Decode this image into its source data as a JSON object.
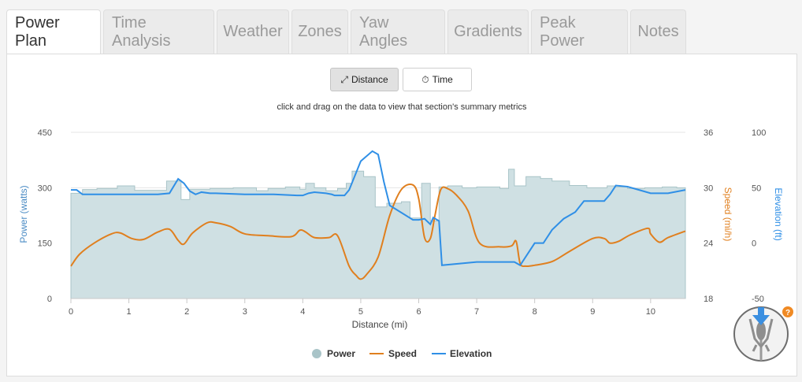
{
  "tabs": [
    {
      "label": "Power Plan",
      "active": true
    },
    {
      "label": "Time Analysis",
      "active": false
    },
    {
      "label": "Weather",
      "active": false
    },
    {
      "label": "Zones",
      "active": false
    },
    {
      "label": "Yaw Angles",
      "active": false
    },
    {
      "label": "Gradients",
      "active": false
    },
    {
      "label": "Peak Power",
      "active": false
    },
    {
      "label": "Notes",
      "active": false
    }
  ],
  "toggle": {
    "distance_label": "Distance",
    "time_label": "Time",
    "selected": "distance"
  },
  "hint": "click and drag on the data to view that section's summary metrics",
  "help_badge": "?",
  "icons": {
    "distance": "expand-arrows-icon",
    "time": "stopwatch-icon",
    "rider": "rider-yaw-icon",
    "help": "question-icon"
  },
  "colors": {
    "power_fill": "#cfe0e3",
    "power_stroke": "#a9c4c8",
    "speed": "#e07f1e",
    "elevation": "#2f8fe6",
    "power_axis": "#4a8bc4",
    "help_badge": "#f08a24"
  },
  "chart_data": {
    "type": "line",
    "xlabel": "Distance (mi)",
    "x_ticks": [
      0,
      1,
      2,
      3,
      4,
      5,
      6,
      7,
      8,
      9,
      10
    ],
    "xlim": [
      0,
      10.6
    ],
    "grid": true,
    "legend_position": "bottom-center",
    "axes": {
      "power": {
        "label": "Power (watts)",
        "position": "left",
        "range": [
          0,
          450
        ],
        "ticks": [
          0,
          150,
          300,
          450
        ]
      },
      "speed": {
        "label": "Speed (mi/h)",
        "position": "right",
        "range": [
          18,
          36
        ],
        "ticks": [
          18,
          24,
          30,
          36
        ]
      },
      "elevation": {
        "label": "Elevation (ft)",
        "position": "right",
        "range": [
          -50,
          100
        ],
        "ticks": [
          -50,
          0,
          50,
          100
        ]
      }
    },
    "series": [
      {
        "name": "Power",
        "type": "area-step",
        "axis": "power",
        "x": [
          0,
          0.2,
          0.45,
          0.8,
          1.1,
          1.65,
          1.9,
          2.05,
          2.4,
          2.8,
          3.2,
          3.4,
          3.7,
          3.95,
          4.05,
          4.2,
          4.4,
          4.6,
          4.75,
          4.85,
          5.05,
          5.25,
          5.45,
          5.7,
          5.85,
          6.05,
          6.2,
          6.35,
          6.5,
          6.75,
          7.0,
          7.4,
          7.55,
          7.65,
          7.85,
          8.1,
          8.3,
          8.6,
          8.9,
          9.25,
          9.4,
          9.6,
          9.9,
          10.2,
          10.45,
          10.6
        ],
        "values": [
          285,
          295,
          298,
          305,
          293,
          318,
          268,
          296,
          298,
          300,
          292,
          298,
          302,
          296,
          312,
          300,
          292,
          298,
          312,
          345,
          330,
          248,
          258,
          262,
          218,
          312,
          210,
          302,
          305,
          300,
          302,
          298,
          350,
          305,
          330,
          325,
          318,
          306,
          300,
          305,
          302,
          298,
          300,
          302,
          300,
          300
        ]
      },
      {
        "name": "Speed",
        "type": "line",
        "axis": "speed",
        "x": [
          0,
          0.15,
          0.4,
          0.7,
          0.85,
          1.05,
          1.25,
          1.5,
          1.7,
          1.85,
          1.95,
          2.1,
          2.35,
          2.5,
          2.75,
          3.0,
          3.4,
          3.8,
          3.95,
          4.05,
          4.2,
          4.45,
          4.6,
          4.8,
          4.92,
          5.0,
          5.1,
          5.3,
          5.5,
          5.7,
          5.9,
          6.0,
          6.1,
          6.2,
          6.28,
          6.38,
          6.5,
          6.65,
          6.85,
          7.05,
          7.4,
          7.6,
          7.68,
          7.75,
          7.85,
          8.0,
          8.3,
          8.6,
          9.0,
          9.2,
          9.3,
          9.45,
          9.65,
          9.95,
          10.0,
          10.15,
          10.3,
          10.6
        ],
        "values": [
          21.5,
          22.8,
          24.0,
          25.0,
          25.1,
          24.5,
          24.4,
          25.2,
          25.5,
          24.3,
          23.9,
          25.1,
          26.2,
          26.2,
          25.8,
          25.0,
          24.8,
          24.7,
          25.4,
          25.2,
          24.6,
          24.6,
          24.8,
          21.5,
          20.5,
          20.1,
          20.6,
          22.5,
          27.0,
          29.8,
          30.3,
          28.8,
          24.6,
          24.5,
          27.0,
          29.8,
          29.9,
          29.2,
          27.5,
          24.0,
          23.6,
          23.7,
          24.2,
          21.8,
          21.5,
          21.6,
          22.0,
          23.1,
          24.5,
          24.5,
          24.0,
          24.2,
          24.9,
          25.6,
          25.0,
          24.1,
          24.6,
          25.3
        ]
      },
      {
        "name": "Elevation",
        "type": "line",
        "axis": "elevation",
        "x": [
          0,
          0.1,
          0.2,
          0.5,
          1.0,
          1.5,
          1.7,
          1.85,
          1.95,
          2.05,
          2.15,
          2.25,
          2.4,
          2.5,
          3.0,
          3.5,
          3.9,
          4.0,
          4.1,
          4.2,
          4.4,
          4.5,
          4.55,
          4.65,
          4.72,
          4.8,
          5.0,
          5.2,
          5.3,
          5.4,
          5.5,
          5.9,
          6.0,
          6.1,
          6.2,
          6.25,
          6.35,
          6.4,
          7.0,
          7.5,
          7.65,
          7.75,
          8.0,
          8.15,
          8.3,
          8.5,
          8.7,
          8.85,
          9.2,
          9.3,
          9.4,
          9.6,
          9.8,
          10.0,
          10.3,
          10.6
        ],
        "values": [
          48,
          48,
          44,
          44,
          44,
          44,
          45,
          58,
          54,
          47,
          44,
          46,
          45,
          45,
          44,
          44,
          43,
          43,
          45,
          46,
          45,
          44,
          43,
          43,
          43,
          48,
          74,
          83,
          80,
          55,
          34,
          21,
          21,
          22,
          17,
          23,
          20,
          -20,
          -17,
          -17,
          -17,
          -20,
          0,
          0,
          12,
          22,
          28,
          38,
          38,
          44,
          52,
          51,
          48,
          45,
          45,
          48
        ]
      }
    ]
  }
}
